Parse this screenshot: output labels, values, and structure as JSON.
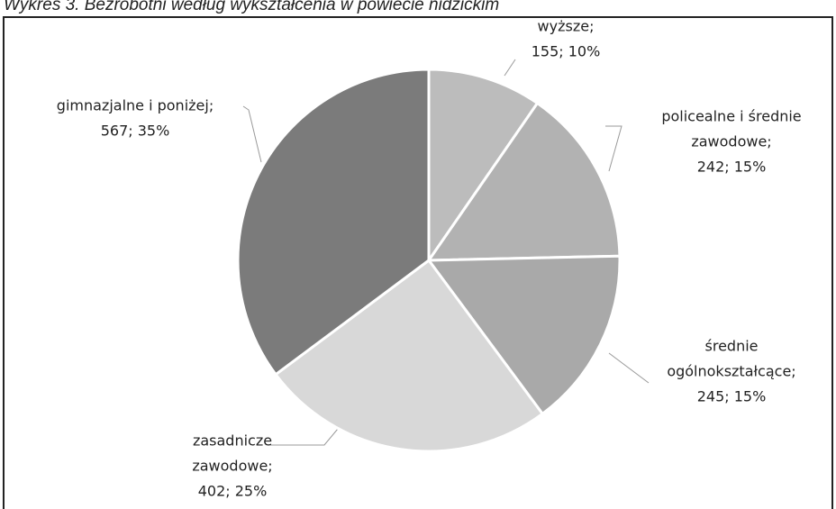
{
  "chart_data": {
    "type": "pie",
    "title": "Wykres 3. Bezrobotni według wykształcenia w powiecie nidzickim",
    "categories": [
      [
        "wyższe;"
      ],
      [
        "policealne i średnie",
        "zawodowe;"
      ],
      [
        "średnie",
        "ogólnokształcące;"
      ],
      [
        "zasadnicze",
        "zawodowe;"
      ],
      [
        "gimnazjalne i poniżej;"
      ]
    ],
    "values": [
      155,
      242,
      245,
      402,
      567
    ],
    "value_labels": [
      "155; 10%",
      "242; 15%",
      "245; 15%",
      "402; 25%",
      "567; 35%"
    ],
    "colors": [
      "#bcbcbc",
      "#b2b2b2",
      "#a9a9a9",
      "#d8d8d8",
      "#7b7b7b"
    ]
  }
}
